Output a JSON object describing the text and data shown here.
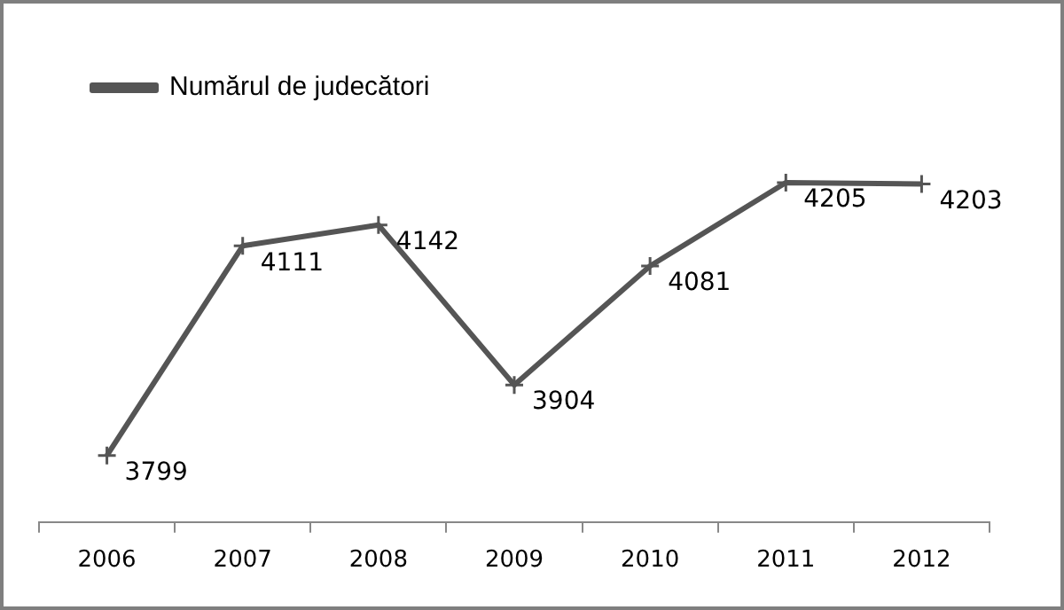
{
  "chart_data": {
    "type": "line",
    "categories": [
      "2006",
      "2007",
      "2008",
      "2009",
      "2010",
      "2011",
      "2012"
    ],
    "series": [
      {
        "name": "Numărul de judecători",
        "color": "#555555",
        "values": [
          3799,
          4111,
          4142,
          3904,
          4081,
          4205,
          4203
        ]
      }
    ],
    "data_labels": true,
    "legend": "top left",
    "marker": "cross",
    "grid": false
  }
}
